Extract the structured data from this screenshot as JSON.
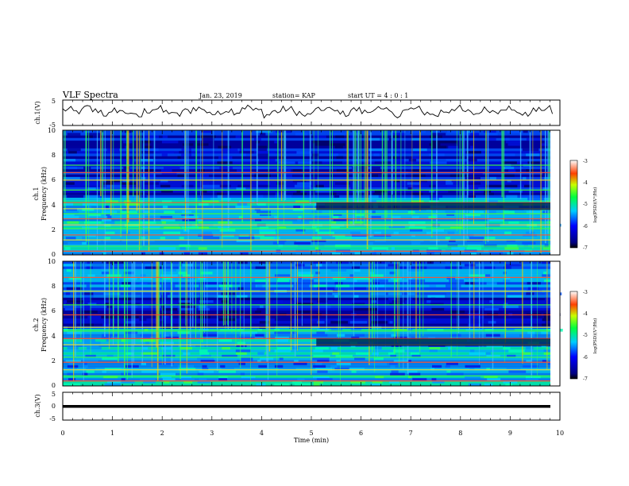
{
  "header": {
    "title": "VLF Spectra",
    "date": "Jan. 23, 2019",
    "station": "station= KAP",
    "start": "start UT =  4 : 0 : 1"
  },
  "chart_data": [
    {
      "type": "line",
      "panel": "ch1-waveform",
      "ylabel": "ch.1(V)",
      "ylim": [
        -5,
        5
      ],
      "yticks": [
        "5",
        "-5"
      ],
      "xlim": [
        0,
        10
      ],
      "x_step": 0.2,
      "y": [
        1.2,
        0.4,
        2.0,
        0.8,
        -0.6,
        1.0,
        0.2,
        -1.4,
        0.8,
        1.6,
        0.3,
        -0.9,
        0.7,
        1.8,
        0.6,
        -0.5,
        1.1,
        0.4,
        2.2,
        0.9,
        -0.8,
        0.5,
        1.4,
        0.2,
        -1.1,
        0.9,
        1.7,
        0.5,
        -0.4,
        1.2,
        0.3,
        1.9,
        0.7,
        -0.7,
        0.8,
        1.5,
        0.1,
        -1.0,
        0.6,
        1.8,
        0.4,
        -0.3,
        1.3,
        0.6,
        2.0,
        0.5,
        -0.9,
        0.9,
        1.6,
        0.2
      ]
    },
    {
      "type": "heatmap",
      "panel": "ch1-spectrogram",
      "ylabel": "ch.1\nFrequency (kHz)",
      "xlim": [
        0,
        10
      ],
      "ylim": [
        0,
        10
      ],
      "yticks": [
        "0",
        "2",
        "4",
        "6",
        "8",
        "10"
      ],
      "colorbar": {
        "label": "log(PSD)(V²/Hz)",
        "range": [
          -7,
          -3
        ],
        "ticks": [
          "-3",
          "-4",
          "-5",
          "-6",
          "-7"
        ]
      },
      "bands_khz": [
        0.3,
        0.7,
        1.2,
        1.6,
        2.1,
        2.4,
        2.9,
        3.3,
        3.7,
        4.2,
        5.2,
        6.0,
        6.6,
        7.2
      ]
    },
    {
      "type": "heatmap",
      "panel": "ch2-spectrogram",
      "ylabel": "ch.2\nFrequency (kHz)",
      "xlim": [
        0,
        10
      ],
      "ylim": [
        0,
        10
      ],
      "yticks": [
        "0",
        "2",
        "4",
        "6",
        "8",
        "10"
      ],
      "colorbar": {
        "label": "log(PSD)(V²/Hz)",
        "range": [
          -7,
          -3
        ],
        "ticks": [
          "-3",
          "-4",
          "-5",
          "-6",
          "-7"
        ]
      },
      "bands_khz": [
        0.4,
        0.8,
        1.3,
        1.9,
        2.3,
        3.3,
        3.8,
        4.4,
        4.7,
        5.7,
        6.5,
        7.6,
        8.7
      ]
    },
    {
      "type": "line",
      "panel": "ch3-waveform",
      "ylabel": "ch.3(V)",
      "ylim": [
        -5,
        5
      ],
      "yticks": [
        "5",
        "0",
        "-5"
      ],
      "xlim": [
        0,
        10
      ],
      "level": 0
    }
  ],
  "x_axis": {
    "label": "Time (min)",
    "ticks": [
      "0",
      "1",
      "2",
      "3",
      "4",
      "5",
      "6",
      "7",
      "8",
      "9",
      "10"
    ]
  }
}
